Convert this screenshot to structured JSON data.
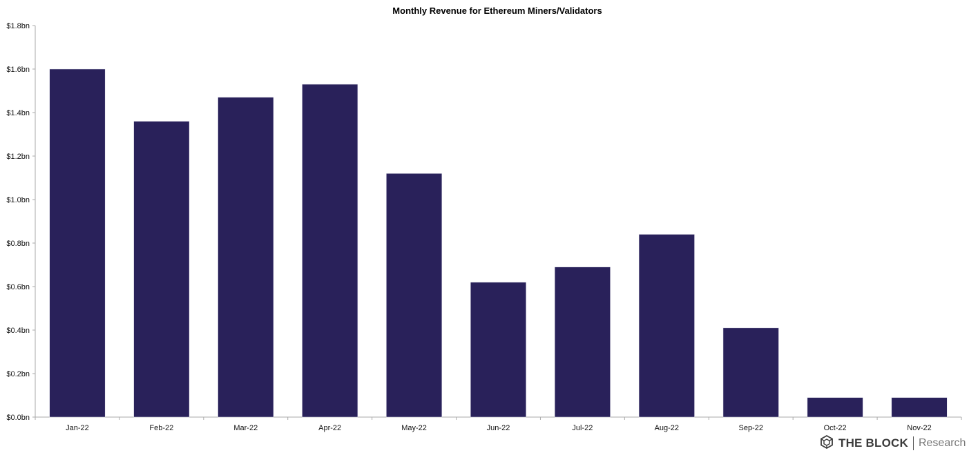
{
  "colors": {
    "bar": "#29215a",
    "axis": "#aaaaaa"
  },
  "chart_data": {
    "type": "bar",
    "title": "Monthly Revenue for Ethereum Miners/Validators",
    "xlabel": "",
    "ylabel": "",
    "categories": [
      "Jan-22",
      "Feb-22",
      "Mar-22",
      "Apr-22",
      "May-22",
      "Jun-22",
      "Jul-22",
      "Aug-22",
      "Sep-22",
      "Oct-22",
      "Nov-22"
    ],
    "series": [
      {
        "values": [
          1.6,
          1.36,
          1.47,
          1.53,
          1.12,
          0.62,
          0.69,
          0.84,
          0.41,
          0.09,
          0.09
        ]
      }
    ],
    "ylim": [
      0,
      1.8
    ],
    "yticks": [
      0,
      0.2,
      0.4,
      0.6,
      0.8,
      1.0,
      1.2,
      1.4,
      1.6,
      1.8
    ],
    "ytick_labels": [
      "$0.0bn",
      "$0.2bn",
      "$0.4bn",
      "$0.6bn",
      "$0.8bn",
      "$1.0bn",
      "$1.2bn",
      "$1.4bn",
      "$1.6bn",
      "$1.8bn"
    ],
    "grid": false,
    "legend": "none",
    "unit": "USD billions"
  },
  "branding": {
    "name": "THE BLOCK",
    "sub": "Research",
    "icon": "cube-logo-icon"
  }
}
